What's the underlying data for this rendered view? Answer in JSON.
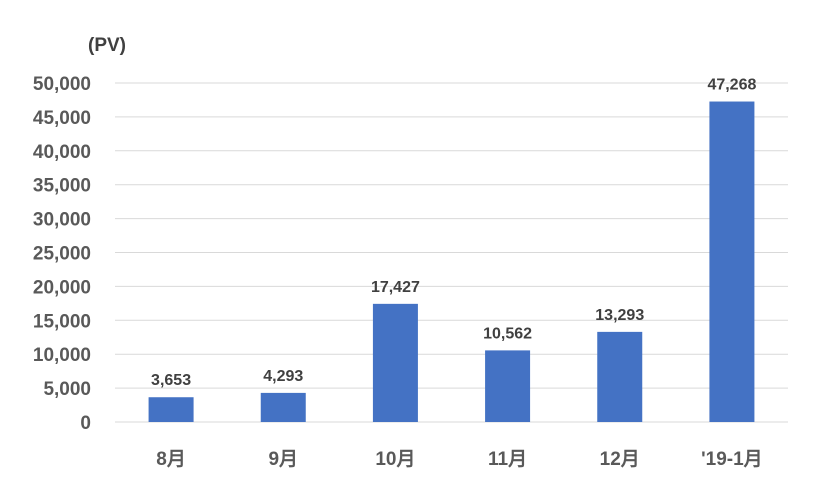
{
  "chart_data": {
    "type": "bar",
    "unit_label": "(PV)",
    "categories": [
      "8月",
      "9月",
      "10月",
      "11月",
      "12月",
      "'19-1月"
    ],
    "values": [
      3653,
      4293,
      17427,
      10562,
      13293,
      47268
    ],
    "data_labels": [
      "3,653",
      "4,293",
      "17,427",
      "10,562",
      "13,293",
      "47,268"
    ],
    "y_ticks": [
      0,
      5000,
      10000,
      15000,
      20000,
      25000,
      30000,
      35000,
      40000,
      45000,
      50000
    ],
    "y_tick_labels": [
      "0",
      "5,000",
      "10,000",
      "15,000",
      "20,000",
      "25,000",
      "30,000",
      "35,000",
      "40,000",
      "45,000",
      "50,000"
    ],
    "ylim": [
      0,
      50000
    ],
    "grid": true,
    "bar_color": "#4472C4",
    "grid_color": "#D9D9D9"
  }
}
